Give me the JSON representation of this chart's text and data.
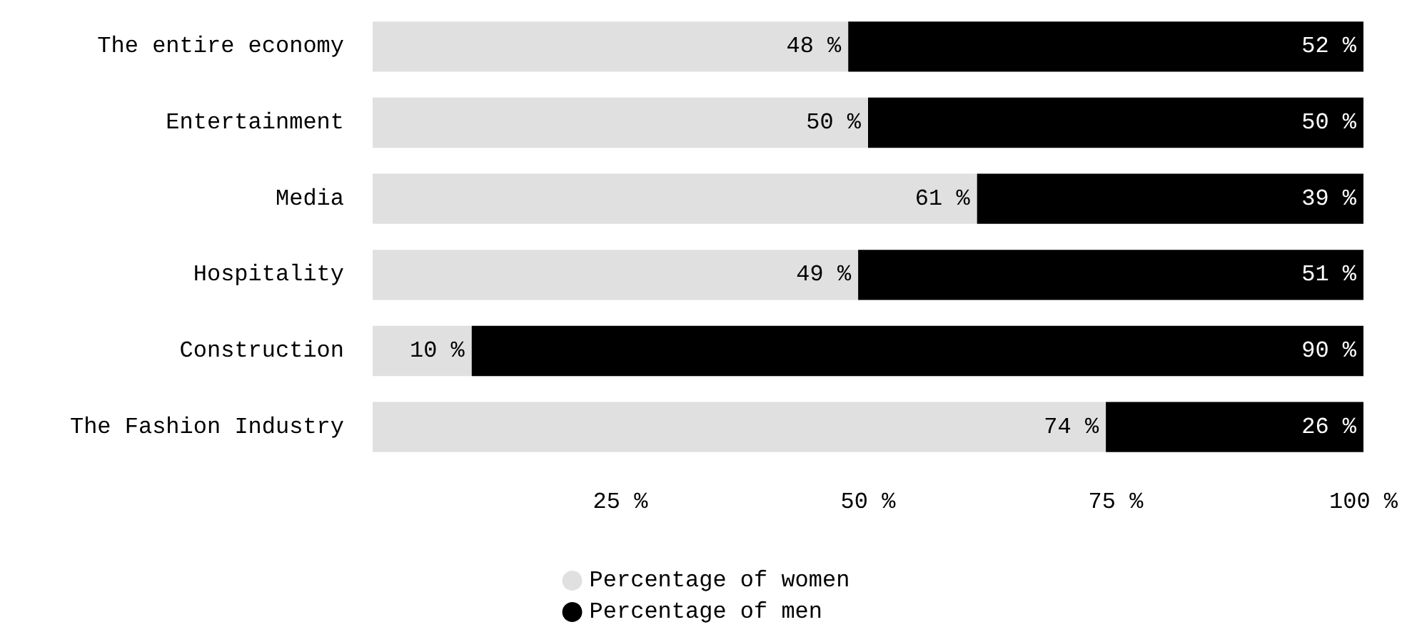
{
  "chart_data": {
    "type": "bar",
    "orientation": "horizontal",
    "stacked": true,
    "categories": [
      "The entire economy",
      "Entertainment",
      "Media",
      "Hospitality",
      "Construction",
      "The Fashion Industry"
    ],
    "series": [
      {
        "name": "Percentage of women",
        "color": "#e0e0e0",
        "values": [
          48,
          50,
          61,
          49,
          10,
          74
        ],
        "value_labels": [
          "48 %",
          "50 %",
          "61 %",
          "49 %",
          "10 %",
          "74 %"
        ]
      },
      {
        "name": "Percentage of men",
        "color": "#000000",
        "values": [
          52,
          50,
          39,
          51,
          90,
          26
        ],
        "value_labels": [
          "52 %",
          "50 %",
          "39 %",
          "51 %",
          "90 %",
          "26 %"
        ]
      }
    ],
    "xlim": [
      0,
      100
    ],
    "xticks": [
      {
        "value": 25,
        "label": "25 %"
      },
      {
        "value": 50,
        "label": "50 %"
      },
      {
        "value": 75,
        "label": "75 %"
      },
      {
        "value": 100,
        "label": "100 %"
      }
    ],
    "grid": false,
    "legend": "bottom"
  }
}
